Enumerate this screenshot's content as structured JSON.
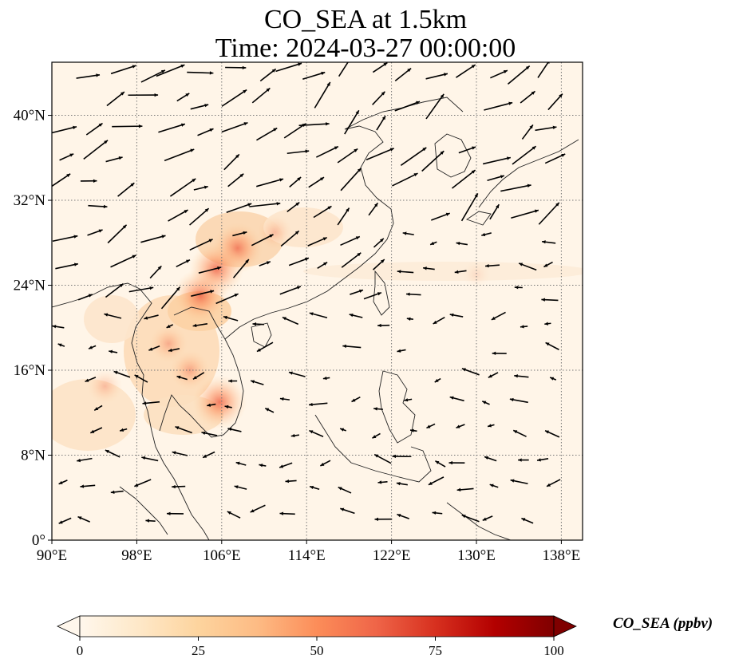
{
  "header": {
    "title": "CO_SEA at 1.5km",
    "time": "Time: 2024-03-27 00:00:00"
  },
  "map": {
    "extent": {
      "lon_min": 90,
      "lon_max": 140,
      "lat_min": 0,
      "lat_max": 45
    },
    "lon_ticks": [
      90,
      98,
      106,
      114,
      122,
      130,
      138
    ],
    "lon_tick_labels": [
      "90°E",
      "98°E",
      "106°E",
      "114°E",
      "122°E",
      "130°E",
      "138°E"
    ],
    "lat_ticks": [
      0,
      8,
      16,
      24,
      32,
      40
    ],
    "lat_tick_labels": [
      "0°",
      "8°N",
      "16°N",
      "24°N",
      "32°N",
      "40°N"
    ],
    "gridlines": true,
    "high_co_regions": [
      {
        "lon": 107.5,
        "lat": 27.5,
        "level": 0.45
      },
      {
        "lon": 105.5,
        "lat": 25.5,
        "level": 0.5
      },
      {
        "lon": 104.0,
        "lat": 23.0,
        "level": 0.5
      },
      {
        "lon": 105.8,
        "lat": 13.0,
        "level": 0.5
      },
      {
        "lon": 103.0,
        "lat": 16.0,
        "level": 0.28
      },
      {
        "lon": 101.0,
        "lat": 18.5,
        "level": 0.25
      },
      {
        "lon": 95.0,
        "lat": 14.5,
        "level": 0.2
      },
      {
        "lon": 111.0,
        "lat": 29.0,
        "level": 0.2
      },
      {
        "lon": 130.0,
        "lat": 25.0,
        "level": 0.08
      }
    ]
  },
  "colorbar": {
    "label": "CO_SEA (ppbv)",
    "min": 0,
    "max": 100,
    "tick_values": [
      0,
      25,
      50,
      75,
      100
    ],
    "tick_labels": [
      "0",
      "25",
      "50",
      "75",
      "100"
    ],
    "colormap": "OrRd",
    "colors": [
      "#fff7ec",
      "#fee8c8",
      "#fdd49e",
      "#fdbb84",
      "#fc8d59",
      "#ef6548",
      "#d7301f",
      "#b30000",
      "#7f0000"
    ],
    "extend": "both"
  }
}
